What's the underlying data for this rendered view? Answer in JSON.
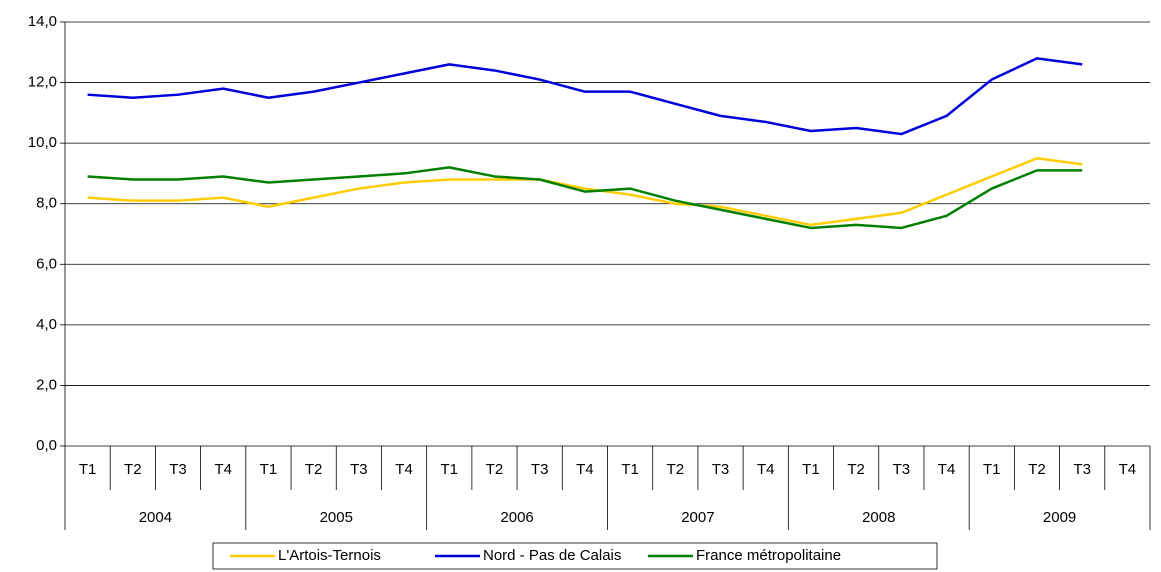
{
  "chart_data": {
    "type": "line",
    "categories": [
      "T1",
      "T2",
      "T3",
      "T4",
      "T1",
      "T2",
      "T3",
      "T4",
      "T1",
      "T2",
      "T3",
      "T4",
      "T1",
      "T2",
      "T3",
      "T4",
      "T1",
      "T2",
      "T3",
      "T4",
      "T1",
      "T2",
      "T3",
      "T4"
    ],
    "groups": [
      "2004",
      "2005",
      "2006",
      "2007",
      "2008",
      "2009"
    ],
    "series": [
      {
        "name": "L'Artois-Ternois",
        "color": "#ffcc00",
        "values": [
          8.2,
          8.1,
          8.1,
          8.2,
          7.9,
          8.2,
          8.5,
          8.7,
          8.8,
          8.8,
          8.8,
          8.5,
          8.3,
          8.0,
          7.9,
          7.6,
          7.3,
          7.5,
          7.7,
          8.3,
          8.9,
          9.5,
          9.3,
          null
        ]
      },
      {
        "name": "Nord - Pas de Calais",
        "color": "#0000dd",
        "values": [
          11.6,
          11.5,
          11.6,
          11.8,
          11.5,
          11.7,
          12.0,
          12.3,
          12.6,
          12.4,
          12.1,
          11.7,
          11.7,
          11.3,
          10.9,
          10.7,
          10.4,
          10.5,
          10.3,
          10.9,
          12.1,
          12.8,
          12.6,
          null
        ]
      },
      {
        "name": "France métropolitaine",
        "color": "#008000",
        "values": [
          8.9,
          8.8,
          8.8,
          8.9,
          8.7,
          8.8,
          8.9,
          9.0,
          9.2,
          8.9,
          8.8,
          8.4,
          8.5,
          8.1,
          7.8,
          7.5,
          7.2,
          7.3,
          7.2,
          7.6,
          8.5,
          9.1,
          9.1,
          null
        ]
      }
    ],
    "ylim": [
      0,
      14
    ],
    "yticks": [
      {
        "value": 0,
        "label": "0,0"
      },
      {
        "value": 2,
        "label": "2,0"
      },
      {
        "value": 4,
        "label": "4,0"
      },
      {
        "value": 6,
        "label": "6,0"
      },
      {
        "value": 8,
        "label": "8,0"
      },
      {
        "value": 10,
        "label": "10,0"
      },
      {
        "value": 12,
        "label": "12,0"
      },
      {
        "value": 14,
        "label": "14,0"
      }
    ],
    "grid": true,
    "legend": "bottom"
  }
}
